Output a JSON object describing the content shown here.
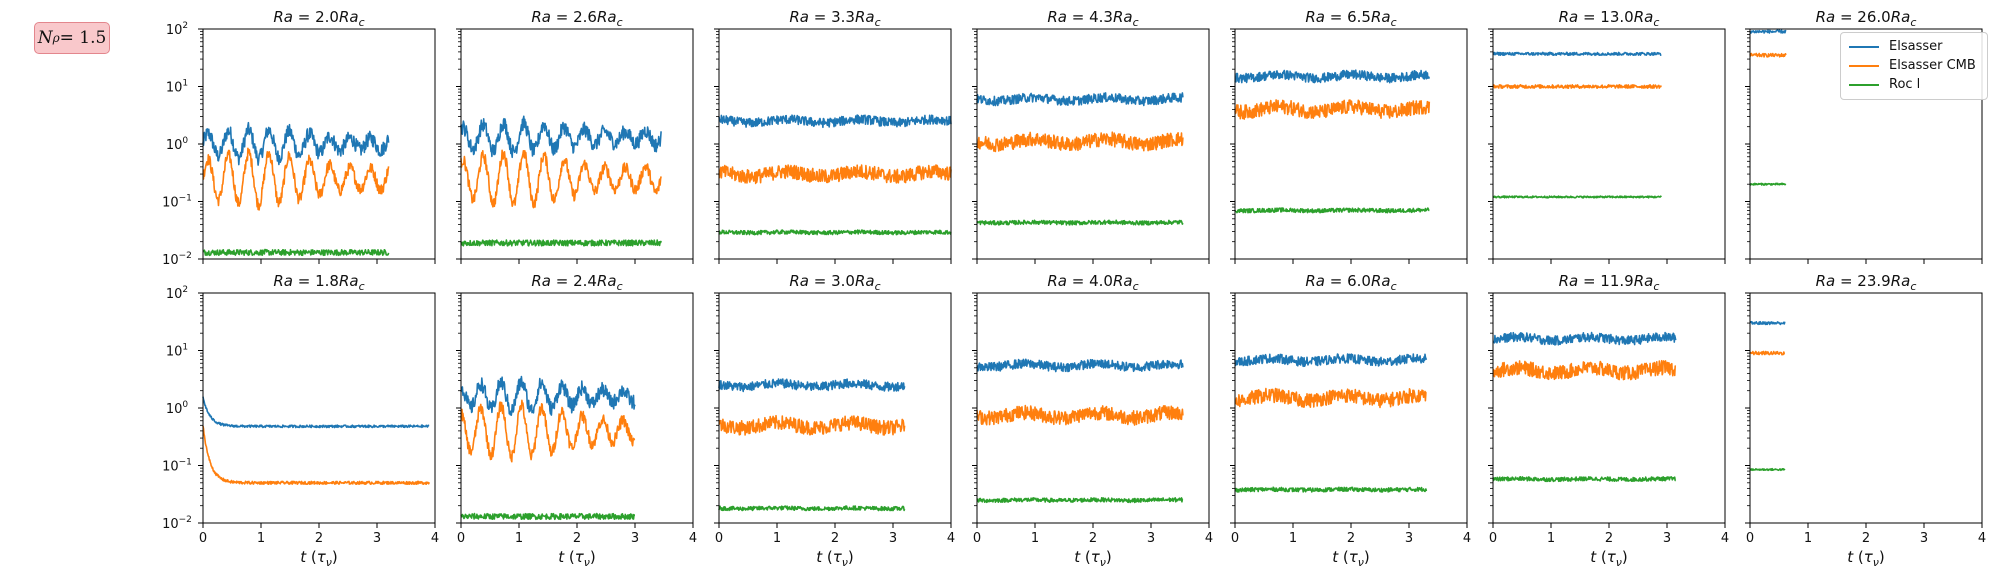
{
  "badge": {
    "N_label": "N",
    "N_sub": "ρ",
    "eq": " = 1.5"
  },
  "legend": [
    {
      "label": "Elsasser",
      "color": "#1f77b4"
    },
    {
      "label": "Elsasser CMB",
      "color": "#ff7f0e"
    },
    {
      "label": "Roc l",
      "color": "#2ca02c"
    }
  ],
  "chart_data": {
    "type": "line",
    "rows": 2,
    "cols": 7,
    "xlabel": "t (τ_ν)",
    "xlim": [
      0,
      4
    ],
    "xticks": [
      "0",
      "1",
      "2",
      "3",
      "4"
    ],
    "ylim": [
      0.01,
      100
    ],
    "yscale": "log",
    "yticks": [
      "10^-2",
      "10^-1",
      "10^0",
      "10^1",
      "10^2"
    ],
    "series_names": [
      "Elsasser",
      "Elsasser CMB",
      "Roc l"
    ],
    "panels": [
      {
        "title": "Ra = 2.0Ra_c",
        "t_end": 3.2,
        "elsasser": 1.0,
        "elsasser_cmb": 0.25,
        "roc": 0.013,
        "style": "oscillating"
      },
      {
        "title": "Ra = 2.6Ra_c",
        "t_end": 3.45,
        "elsasser": 1.3,
        "elsasser_cmb": 0.25,
        "roc": 0.019,
        "style": "oscillating"
      },
      {
        "title": "Ra = 3.3Ra_c",
        "t_end": 4.0,
        "elsasser": 2.5,
        "elsasser_cmb": 0.3,
        "roc": 0.029,
        "style": "noisy"
      },
      {
        "title": "Ra = 4.3Ra_c",
        "t_end": 3.55,
        "elsasser": 6.0,
        "elsasser_cmb": 1.1,
        "roc": 0.043,
        "style": "noisy"
      },
      {
        "title": "Ra = 6.5Ra_c",
        "t_end": 3.35,
        "elsasser": 15,
        "elsasser_cmb": 4.0,
        "roc": 0.07,
        "style": "noisy"
      },
      {
        "title": "Ra = 13.0Ra_c",
        "t_end": 2.9,
        "elsasser": 37,
        "elsasser_cmb": 10,
        "roc": 0.12,
        "style": "flat"
      },
      {
        "title": "Ra = 26.0Ra_c",
        "t_end": 0.62,
        "elsasser": 90,
        "elsasser_cmb": 35,
        "roc": 0.2,
        "style": "flat"
      },
      {
        "title": "Ra = 1.8Ra_c",
        "t_end": 3.9,
        "elsasser": 0.48,
        "elsasser_cmb": 0.05,
        "roc": null,
        "style": "decay"
      },
      {
        "title": "Ra = 2.4Ra_c",
        "t_end": 3.0,
        "elsasser": 1.6,
        "elsasser_cmb": 0.4,
        "roc": 0.013,
        "style": "oscillating"
      },
      {
        "title": "Ra = 3.0Ra_c",
        "t_end": 3.2,
        "elsasser": 2.5,
        "elsasser_cmb": 0.5,
        "roc": 0.018,
        "style": "noisy"
      },
      {
        "title": "Ra = 4.0Ra_c",
        "t_end": 3.55,
        "elsasser": 5.5,
        "elsasser_cmb": 0.75,
        "roc": 0.025,
        "style": "noisy"
      },
      {
        "title": "Ra = 6.0Ra_c",
        "t_end": 3.3,
        "elsasser": 6.8,
        "elsasser_cmb": 1.5,
        "roc": 0.038,
        "style": "noisy"
      },
      {
        "title": "Ra = 11.9Ra_c",
        "t_end": 3.15,
        "elsasser": 16,
        "elsasser_cmb": 4.5,
        "roc": 0.058,
        "style": "noisy"
      },
      {
        "title": "Ra = 23.9Ra_c",
        "t_end": 0.6,
        "elsasser": 30,
        "elsasser_cmb": 9,
        "roc": 0.085,
        "style": "flat"
      }
    ]
  }
}
